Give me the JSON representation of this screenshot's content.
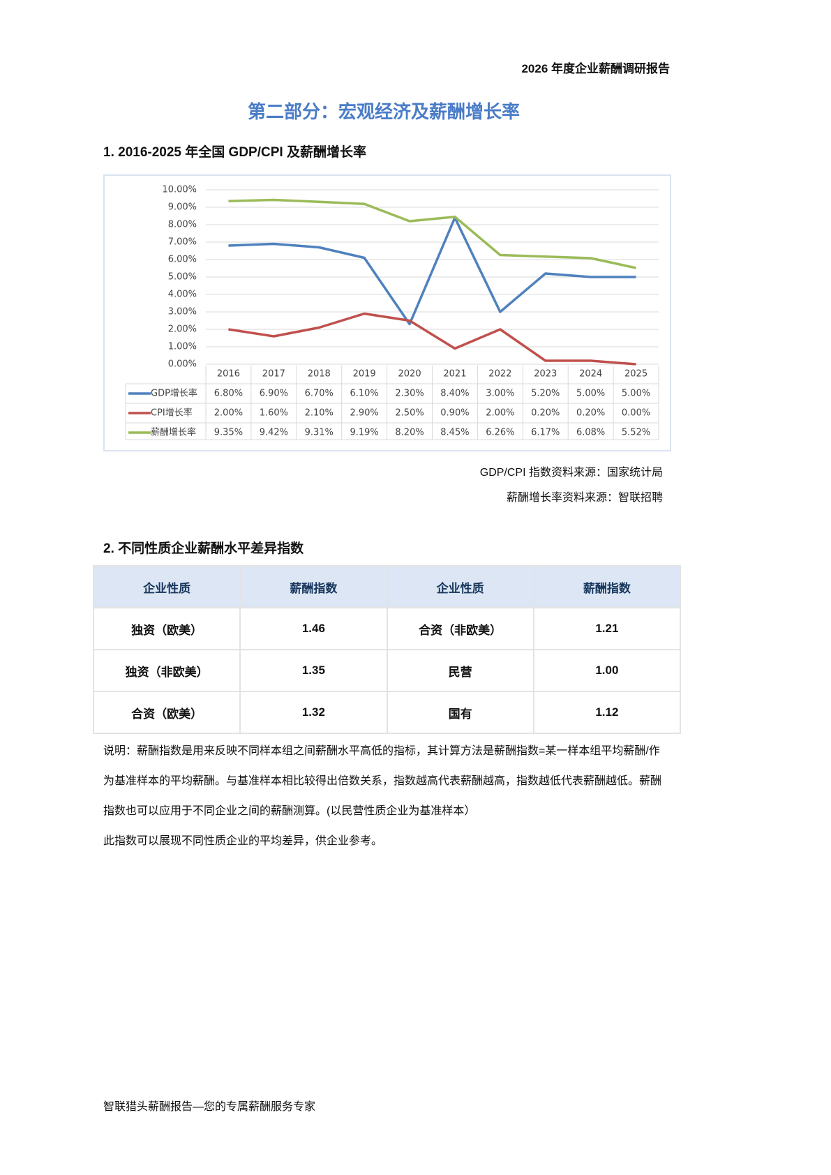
{
  "header": "2026 年度企业薪酬调研报告",
  "title": "第二部分：宏观经济及薪酬增长率",
  "section1": {
    "heading": "1. 2016-2025 年全国 GDP/CPI 及薪酬增长率",
    "sources": [
      "GDP/CPI 指数资料来源：国家统计局",
      "薪酬增长率资料来源：智联招聘"
    ]
  },
  "chart_data": {
    "type": "line",
    "categories": [
      "2016",
      "2017",
      "2018",
      "2019",
      "2020",
      "2021",
      "2022",
      "2023",
      "2024",
      "2025"
    ],
    "series": [
      {
        "name": "GDP增长率",
        "color": "#4f81bd",
        "values": [
          6.8,
          6.9,
          6.7,
          6.1,
          2.3,
          8.4,
          3.0,
          5.2,
          5.0,
          5.0
        ],
        "value_labels": [
          "6.80%",
          "6.90%",
          "6.70%",
          "6.10%",
          "2.30%",
          "8.40%",
          "3.00%",
          "5.20%",
          "5.00%",
          "5.00%"
        ]
      },
      {
        "name": "CPI增长率",
        "color": "#c0504d",
        "values": [
          2.0,
          1.6,
          2.1,
          2.9,
          2.5,
          0.9,
          2.0,
          0.2,
          0.2,
          0.0
        ],
        "value_labels": [
          "2.00%",
          "1.60%",
          "2.10%",
          "2.90%",
          "2.50%",
          "0.90%",
          "2.00%",
          "0.20%",
          "0.20%",
          "0.00%"
        ]
      },
      {
        "name": "薪酬增长率",
        "color": "#9bbb59",
        "values": [
          9.35,
          9.42,
          9.31,
          9.19,
          8.2,
          8.45,
          6.26,
          6.17,
          6.08,
          5.52
        ],
        "value_labels": [
          "9.35%",
          "9.42%",
          "9.31%",
          "9.19%",
          "8.20%",
          "8.45%",
          "6.26%",
          "6.17%",
          "6.08%",
          "5.52%"
        ]
      }
    ],
    "ylim": [
      0,
      10
    ],
    "yticks": [
      {
        "value": 0,
        "label": "0.00%"
      },
      {
        "value": 1,
        "label": "1.00%"
      },
      {
        "value": 2,
        "label": "2.00%"
      },
      {
        "value": 3,
        "label": "3.00%"
      },
      {
        "value": 4,
        "label": "4.00%"
      },
      {
        "value": 5,
        "label": "5.00%"
      },
      {
        "value": 6,
        "label": "6.00%"
      },
      {
        "value": 7,
        "label": "7.00%"
      },
      {
        "value": 8,
        "label": "8.00%"
      },
      {
        "value": 9,
        "label": "9.00%"
      },
      {
        "value": 10,
        "label": "10.00%"
      }
    ],
    "grid": true
  },
  "section2": {
    "heading": "2.  不同性质企业薪酬水平差异指数",
    "table": {
      "header": [
        "企业性质",
        "薪酬指数",
        "企业性质",
        "薪酬指数"
      ],
      "rows": [
        [
          "独资（欧美）",
          "1.46",
          "合资（非欧美）",
          "1.21"
        ],
        [
          "独资（非欧美）",
          "1.35",
          "民营",
          "1.00"
        ],
        [
          "合资（欧美）",
          "1.32",
          "国有",
          "1.12"
        ]
      ]
    },
    "notes": [
      "说明：薪酬指数是用来反映不同样本组之间薪酬水平高低的指标，其计算方法是薪酬指数=某一样本组平均薪酬/作为基准样本的平均薪酬。与基准样本相比较得出倍数关系，指数越高代表薪酬越高，指数越低代表薪酬越低。薪酬指数也可以应用于不同企业之间的薪酬测算。(以民营性质企业为基准样本）",
      "此指数可以展现不同性质企业的平均差异，供企业参考。"
    ]
  },
  "footer": "智联猎头薪酬报告—您的专属薪酬服务专家"
}
